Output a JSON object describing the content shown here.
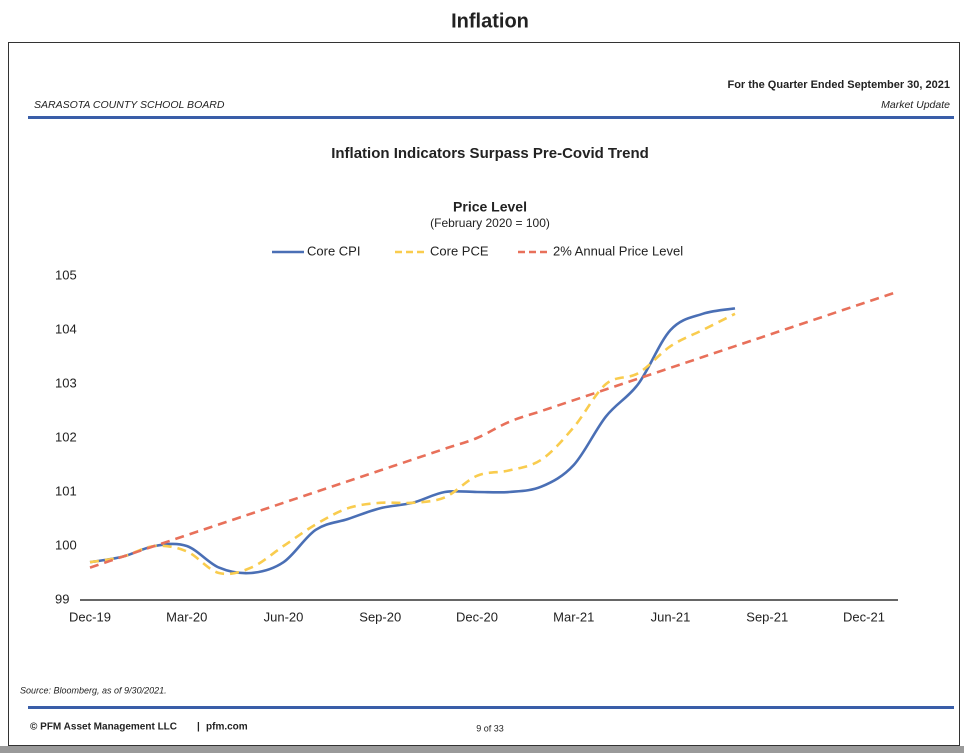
{
  "page_title": "Inflation",
  "header": {
    "quarter": "For the Quarter Ended September 30, 2021",
    "client": "SARASOTA COUNTY SCHOOL BOARD",
    "section": "Market Update"
  },
  "footer": {
    "source": "Source: Bloomberg, as of 9/30/2021.",
    "company": "© PFM Asset Management LLC",
    "site": "pfm.com",
    "page": "9 of 33"
  },
  "chart_data": {
    "type": "line",
    "title": "Inflation Indicators Surpass Pre-Covid Trend",
    "subtitle": "Price Level",
    "note": "(February 2020 = 100)",
    "categories": [
      "Dec-19",
      null,
      null,
      "Mar-20",
      null,
      null,
      "Jun-20",
      null,
      null,
      "Sep-20",
      null,
      null,
      "Dec-20",
      null,
      null,
      "Mar-21",
      null,
      null,
      "Jun-21",
      null,
      null,
      "Sep-21",
      null,
      null,
      "Dec-21",
      null
    ],
    "series": [
      {
        "name": "Core CPI",
        "color": "#4a6fb5",
        "dash": "solid",
        "values": [
          99.7,
          99.8,
          100,
          100,
          99.6,
          99.5,
          99.7,
          100.3,
          100.5,
          100.7,
          100.8,
          101,
          101,
          101,
          101.1,
          101.5,
          102.4,
          103,
          104,
          104.3,
          104.4,
          null,
          null,
          null,
          null,
          null
        ]
      },
      {
        "name": "Core PCE",
        "color": "#f9cc4e",
        "dash": "dashed",
        "values": [
          99.7,
          99.8,
          100,
          99.9,
          99.5,
          99.6,
          100,
          100.4,
          100.7,
          100.8,
          100.8,
          100.9,
          101.3,
          101.4,
          101.6,
          102.2,
          103,
          103.2,
          103.7,
          104,
          104.3,
          null,
          null,
          null,
          null,
          null
        ]
      },
      {
        "name": "2% Annual Price Level",
        "color": "#e8705a",
        "dash": "dashed",
        "values": [
          99.6,
          99.8,
          100,
          100.2,
          100.4,
          100.6,
          100.8,
          101,
          101.2,
          101.4,
          101.6,
          101.8,
          102,
          102.3,
          102.5,
          102.7,
          102.9,
          103.1,
          103.3,
          103.5,
          103.7,
          103.9,
          104.1,
          104.3,
          104.5,
          104.7
        ]
      }
    ],
    "ylim": [
      99,
      105
    ],
    "yticks": [
      99,
      100,
      101,
      102,
      103,
      104,
      105
    ],
    "grid": false,
    "legend": "top"
  }
}
